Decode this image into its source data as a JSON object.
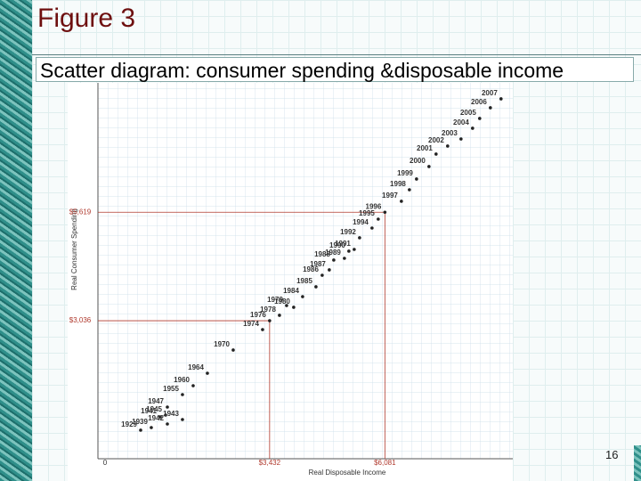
{
  "chart_data": {
    "type": "scatter",
    "title": "Figure 3",
    "subtitle": "Scatter diagram: consumer spending &disposable income",
    "x_label": "Real Disposable Income",
    "y_label": "Real Consumer Spending",
    "origin_label": "0",
    "page_number": "16",
    "color": "#222222",
    "reference_color": "#b03a2e",
    "xlim": [
      -350,
      9000
    ],
    "ylim": [
      -250,
      8700
    ],
    "labels": [
      "2007",
      "2006",
      "2005",
      "2004",
      "2003",
      "2002",
      "2001",
      "2000",
      "1999",
      "1998",
      "1997",
      "1996",
      "1995",
      "1994",
      "1992",
      "1991",
      "1990",
      "1989",
      "1988",
      "1987",
      "1986",
      "1985",
      "1984",
      "1980",
      "1979",
      "1978",
      "1976",
      "1974",
      "1970",
      "1964",
      "1960",
      "1955",
      "1947",
      "1945",
      "1941",
      "1943",
      "1942",
      "1939",
      "1929"
    ],
    "x": [
      8750,
      8505,
      8259,
      8096,
      7830,
      7523,
      7257,
      7094,
      6808,
      6644,
      6460,
      6081,
      5928,
      5785,
      5499,
      5376,
      5253,
      5151,
      4906,
      4803,
      4640,
      4497,
      4190,
      3985,
      3822,
      3658,
      3432,
      3270,
      2595,
      2002,
      1675,
      1429,
      1082,
      1041,
      918,
      1429,
      1082,
      713,
      468
    ],
    "values": [
      8319,
      8107,
      7852,
      7619,
      7364,
      7195,
      7004,
      6707,
      6410,
      6155,
      5880,
      5619,
      5455,
      5243,
      5010,
      4734,
      4692,
      4522,
      4480,
      4247,
      4119,
      3844,
      3610,
      3356,
      3398,
      3165,
      3036,
      2825,
      2338,
      1786,
      1489,
      1277,
      980,
      789,
      747,
      683,
      577,
      492,
      429
    ],
    "reference_lines": [
      {
        "x": 6081,
        "y": 5619,
        "x_label": "$6,081",
        "y_label": "$5,619"
      },
      {
        "x": 3432,
        "y": 3036,
        "x_label": "$3,432",
        "y_label": "$3,036"
      }
    ]
  }
}
